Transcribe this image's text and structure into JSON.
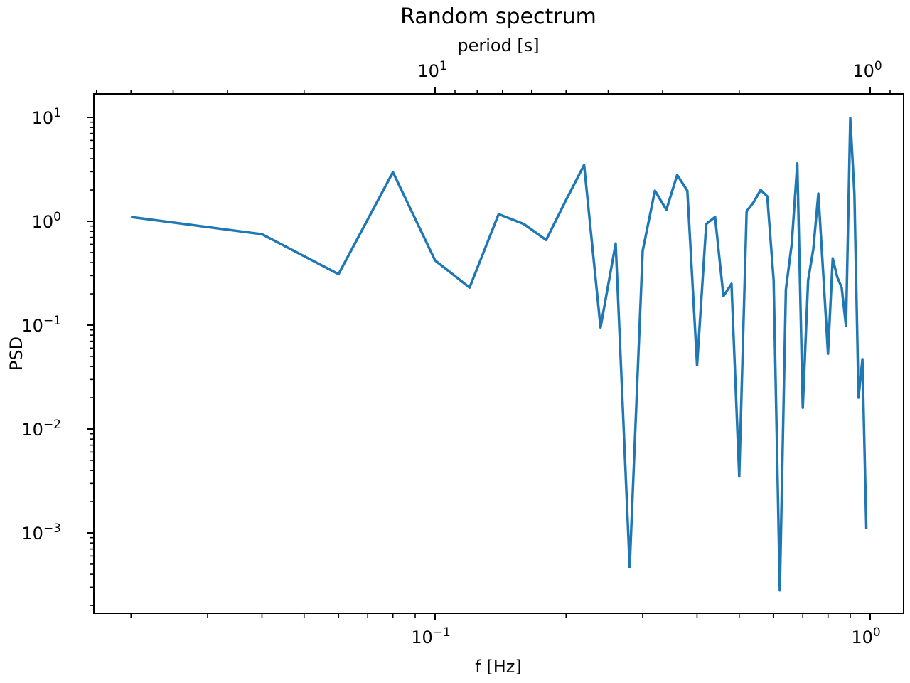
{
  "chart_data": {
    "type": "line",
    "title": "Random spectrum",
    "xlabel": "f [Hz]",
    "ylabel": "PSD",
    "secondary_xlabel": "period [s]",
    "xscale": "log",
    "yscale": "log",
    "xlim": [
      0.0155,
      1.184
    ],
    "ylim": [
      0.00017,
      16.5
    ],
    "grid": false,
    "line_color": "#1f77b4",
    "x_major_ticks": [
      {
        "value": 0.1,
        "base": "10",
        "exp": "−1"
      },
      {
        "value": 1,
        "base": "10",
        "exp": "0"
      }
    ],
    "y_major_ticks": [
      {
        "value": 10,
        "base": "10",
        "exp": "1"
      },
      {
        "value": 1,
        "base": "10",
        "exp": "0"
      },
      {
        "value": 0.1,
        "base": "10",
        "exp": "−1"
      },
      {
        "value": 0.01,
        "base": "10",
        "exp": "−2"
      },
      {
        "value": 0.001,
        "base": "10",
        "exp": "−3"
      }
    ],
    "top_major_ticks": [
      {
        "period": 10,
        "base": "10",
        "exp": "1"
      },
      {
        "period": 1,
        "base": "10",
        "exp": "0"
      }
    ],
    "top_minor_periods": [
      60,
      50,
      40,
      30,
      20,
      9,
      8,
      7,
      6,
      5,
      4,
      3,
      2,
      0.9
    ],
    "x": [
      0.02,
      0.04,
      0.06,
      0.08,
      0.1,
      0.12,
      0.14,
      0.16,
      0.18,
      0.2,
      0.22,
      0.24,
      0.26,
      0.28,
      0.3,
      0.32,
      0.34,
      0.36,
      0.38,
      0.4,
      0.42,
      0.44,
      0.46,
      0.48,
      0.5,
      0.52,
      0.54,
      0.56,
      0.58,
      0.6,
      0.62,
      0.64,
      0.66,
      0.68,
      0.7,
      0.72,
      0.74,
      0.76,
      0.78,
      0.8,
      0.82,
      0.84,
      0.86,
      0.88,
      0.9,
      0.92,
      0.94,
      0.96,
      0.98
    ],
    "series": [
      {
        "name": "PSD",
        "values": [
          1.1,
          0.75,
          0.31,
          2.97,
          0.42,
          0.23,
          1.17,
          0.94,
          0.66,
          1.6,
          3.48,
          0.095,
          0.61,
          0.00047,
          0.52,
          1.97,
          1.29,
          2.79,
          1.97,
          0.041,
          0.94,
          1.1,
          0.19,
          0.25,
          0.0035,
          1.25,
          1.53,
          2.0,
          1.74,
          0.27,
          0.00028,
          0.22,
          0.6,
          3.6,
          0.016,
          0.27,
          0.54,
          1.85,
          0.31,
          0.053,
          0.44,
          0.29,
          0.23,
          0.098,
          9.8,
          1.85,
          0.02,
          0.047,
          0.0011
        ]
      }
    ]
  }
}
